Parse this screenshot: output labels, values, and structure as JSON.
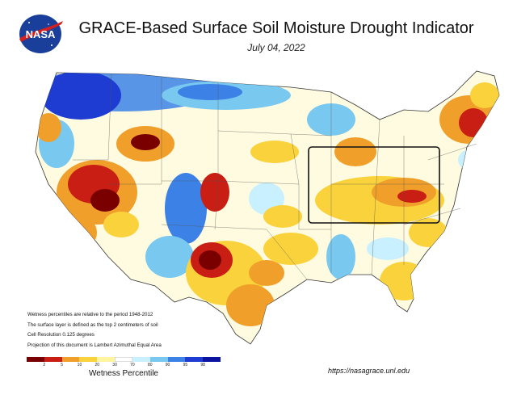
{
  "header": {
    "logo_text": "NASA",
    "title": "GRACE-Based Surface Soil  Moisture Drought Indicator",
    "date": "July 04, 2022"
  },
  "notes": [
    "Wetness percentiles are relative to the period 1948-2012",
    "The surface layer is defined as the top 2 centimeters of soil",
    "Cell Resolution 0.125 degrees",
    "Projection of this document is Lambert Azimuthal Equal Area"
  ],
  "legend": {
    "title": "Wetness Percentile",
    "ticks": [
      "2",
      "5",
      "10",
      "20",
      "30",
      "70",
      "80",
      "90",
      "95",
      "98"
    ],
    "colors": [
      "#7a0000",
      "#c81e14",
      "#f0a02a",
      "#fad23c",
      "#fff5a0",
      "#ffffff",
      "#c8f0ff",
      "#78c8f0",
      "#3c82e6",
      "#1e3cd2",
      "#0a14a0"
    ]
  },
  "url": "https://nasagrace.unl.edu",
  "colors": {
    "dry_extreme": "#7a0000",
    "dry_severe": "#c81e14",
    "dry_moderate": "#f0a02a",
    "dry_abnormal": "#fad23c",
    "near_normal": "#ffffff",
    "wet_light": "#c8f0ff",
    "wet_moderate": "#78c8f0",
    "wet_high": "#3c82e6",
    "wet_very": "#1e3cd2",
    "wet_extreme": "#0a14a0"
  }
}
